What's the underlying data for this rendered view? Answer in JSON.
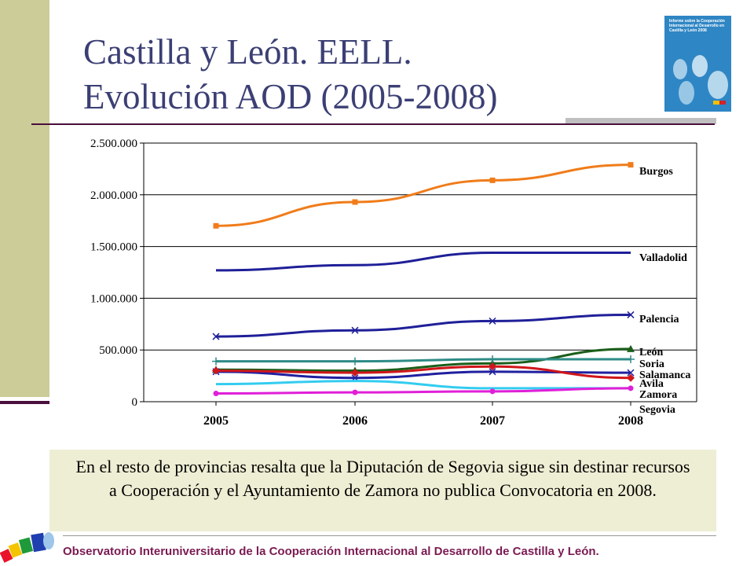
{
  "title": {
    "line1": "Castilla y León. EELL.",
    "line2": "Evolución AOD (2005-2008)"
  },
  "cover": {
    "text": "Informe sobre la Cooperación Internacional al Desarrollo en Castilla y León 2008",
    "color": "#2f86c4"
  },
  "chart_data": {
    "type": "line",
    "title": "",
    "xlabel": "",
    "ylabel": "",
    "x": [
      "2005",
      "2006",
      "2007",
      "2008"
    ],
    "ylim": [
      0,
      2500000
    ],
    "yticks": [
      "0",
      "500.000",
      "1.000.000",
      "1.500.000",
      "2.000.000",
      "2.500.000"
    ],
    "grid": true,
    "legend": "series labels at right end of each line",
    "series": [
      {
        "name": "Burgos",
        "color": "#f07c1a",
        "marker": "square",
        "values": [
          1700000,
          1930000,
          2140000,
          2290000
        ]
      },
      {
        "name": "Valladolid",
        "color": "#1f1f99",
        "marker": "none",
        "values": [
          1270000,
          1320000,
          1440000,
          1440000
        ]
      },
      {
        "name": "Palencia",
        "color": "#1f1f99",
        "marker": "x",
        "values": [
          630000,
          690000,
          780000,
          840000
        ]
      },
      {
        "name": "León",
        "color": "#1a5e1a",
        "marker": "triangle",
        "values": [
          310000,
          300000,
          370000,
          510000
        ]
      },
      {
        "name": "Soria",
        "color": "#2e8b87",
        "marker": "plus",
        "values": [
          390000,
          390000,
          410000,
          410000
        ]
      },
      {
        "name": "Salamanca",
        "color": "#2020a0",
        "marker": "x",
        "values": [
          290000,
          230000,
          290000,
          280000
        ]
      },
      {
        "name": "Avila",
        "color": "#d0161a",
        "marker": "diamond",
        "values": [
          300000,
          280000,
          340000,
          230000
        ]
      },
      {
        "name": "Zamora",
        "color": "#33ccf0",
        "marker": "none",
        "values": [
          170000,
          200000,
          130000,
          130000
        ]
      },
      {
        "name": "Segovia",
        "color": "#e01fd8",
        "marker": "circle",
        "values": [
          80000,
          90000,
          100000,
          130000
        ]
      }
    ]
  },
  "note": "En el resto de provincias resalta que la Diputación de Segovia sigue sin destinar recursos a Cooperación y el Ayuntamiento de Zamora no publica Convocatoria en 2008.",
  "footer": "Observatorio Interuniversitario de la Cooperación Internacional al Desarrollo de Castilla y León."
}
